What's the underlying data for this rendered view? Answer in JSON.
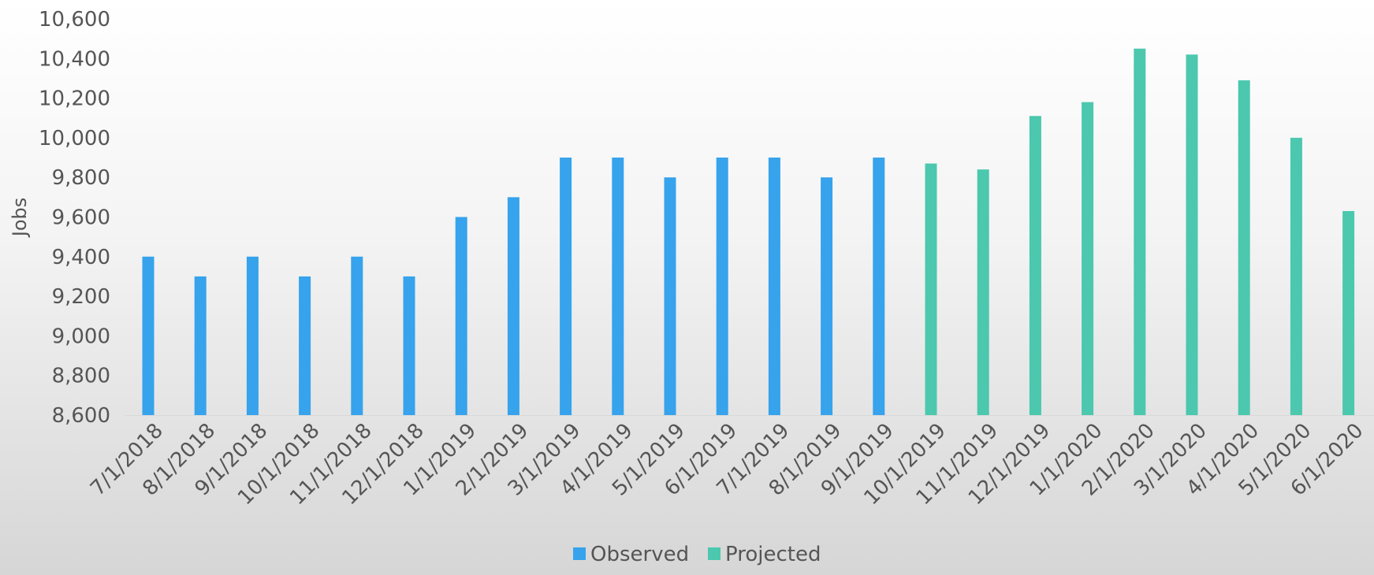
{
  "chart_data": {
    "type": "bar",
    "ylabel": "Jobs",
    "xlabel": "",
    "title": "",
    "ylim": [
      8600,
      10600
    ],
    "yticks": [
      8600,
      8800,
      9000,
      9200,
      9400,
      9600,
      9800,
      10000,
      10200,
      10400,
      10600
    ],
    "ytick_labels": [
      "8,600",
      "8,800",
      "9,000",
      "9,200",
      "9,400",
      "9,600",
      "9,800",
      "10,000",
      "10,200",
      "10,400",
      "10,600"
    ],
    "grid": false,
    "legend_position": "bottom",
    "categories": [
      "7/1/2018",
      "8/1/2018",
      "9/1/2018",
      "10/1/2018",
      "11/1/2018",
      "12/1/2018",
      "1/1/2019",
      "2/1/2019",
      "3/1/2019",
      "4/1/2019",
      "5/1/2019",
      "6/1/2019",
      "7/1/2019",
      "8/1/2019",
      "9/1/2019",
      "10/1/2019",
      "11/1/2019",
      "12/1/2019",
      "1/1/2020",
      "2/1/2020",
      "3/1/2020",
      "4/1/2020",
      "5/1/2020",
      "6/1/2020"
    ],
    "series": [
      {
        "name": "Observed",
        "color": "#36A3EC",
        "values": [
          9400,
          9300,
          9400,
          9300,
          9400,
          9300,
          9600,
          9700,
          9900,
          9900,
          9800,
          9900,
          9900,
          9800,
          9900,
          null,
          null,
          null,
          null,
          null,
          null,
          null,
          null,
          null
        ]
      },
      {
        "name": "Projected",
        "color": "#4BC8AE",
        "values": [
          null,
          null,
          null,
          null,
          null,
          null,
          null,
          null,
          null,
          null,
          null,
          null,
          null,
          null,
          null,
          9870,
          9840,
          10110,
          10180,
          10450,
          10420,
          10290,
          10000,
          9630
        ]
      }
    ]
  }
}
